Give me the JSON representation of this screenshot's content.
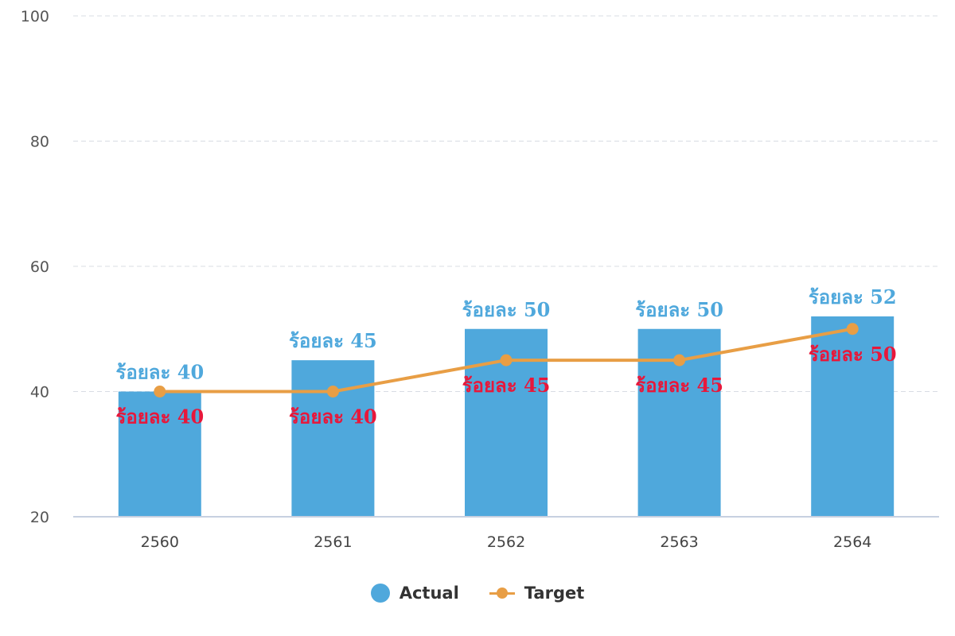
{
  "colors": {
    "actual": "#4fa8dc",
    "target": "#e89e45",
    "actual_label": "#4fa8dc",
    "target_label": "#e8173a"
  },
  "chart_data": {
    "type": "bar",
    "categories": [
      "2560",
      "2561",
      "2562",
      "2563",
      "2564"
    ],
    "series": [
      {
        "name": "Actual",
        "type": "bar",
        "values": [
          40,
          45,
          50,
          50,
          52
        ],
        "labels": [
          "ร้อยละ 40",
          "ร้อยละ 45",
          "ร้อยละ 50",
          "ร้อยละ 50",
          "ร้อยละ 52"
        ]
      },
      {
        "name": "Target",
        "type": "line",
        "values": [
          40,
          40,
          45,
          45,
          50
        ],
        "labels": [
          "ร้อยละ 40",
          "ร้อยละ 40",
          "ร้อยละ 45",
          "ร้อยละ 45",
          "ร้อยละ 50"
        ]
      }
    ],
    "ylim": [
      20,
      100
    ],
    "yticks": [
      20,
      40,
      60,
      80,
      100
    ],
    "grid": true,
    "legend": "bottom-center"
  },
  "legend": {
    "actual_label": "Actual",
    "target_label": "Target"
  }
}
